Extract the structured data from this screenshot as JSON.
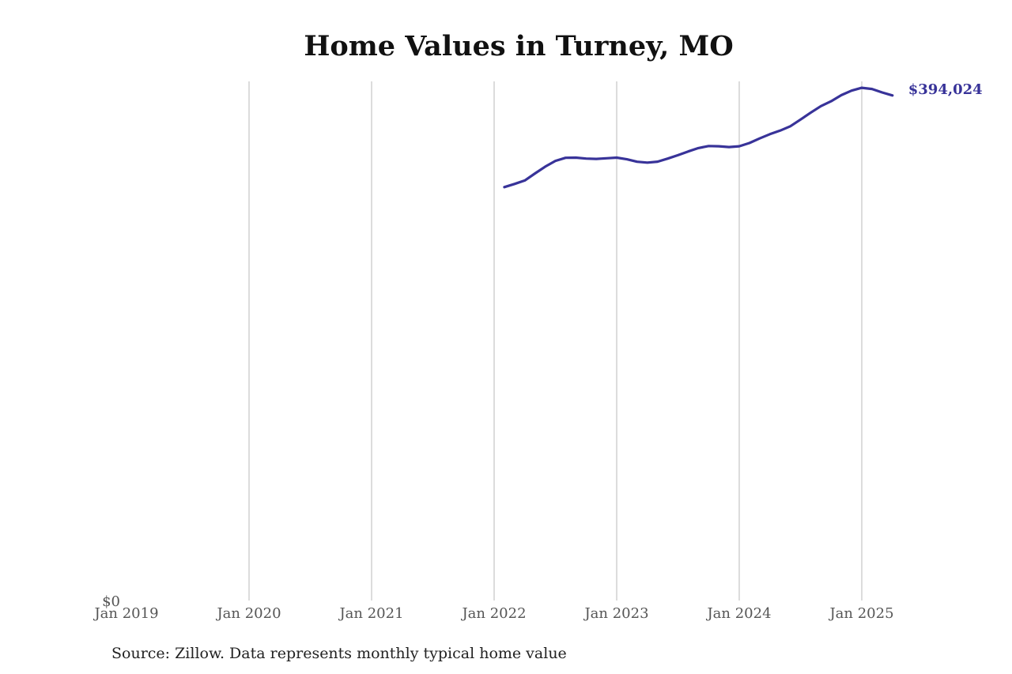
{
  "chart_data": {
    "type": "line",
    "title": "Home Values in Turney, MO",
    "xlabel": "",
    "ylabel": "",
    "x_ticks": [
      "Jan 2019",
      "Jan 2020",
      "Jan 2021",
      "Jan 2022",
      "Jan 2023",
      "Jan 2024",
      "Jan 2025"
    ],
    "y_ticks": [
      {
        "value": 0,
        "label": "$0"
      }
    ],
    "ylim": [
      0,
      405000
    ],
    "xlim": [
      "2019-01",
      "2025-06"
    ],
    "grid": "vertical",
    "line_color": "#383399",
    "end_label": "$394,024",
    "series": [
      {
        "x": [
          "2022-02",
          "2022-03",
          "2022-04",
          "2022-05",
          "2022-06",
          "2022-07",
          "2022-08",
          "2022-09",
          "2022-10",
          "2022-11",
          "2022-12",
          "2023-01",
          "2023-02",
          "2023-03",
          "2023-04",
          "2023-05",
          "2023-06",
          "2023-07",
          "2023-08",
          "2023-09",
          "2023-10",
          "2023-11",
          "2023-12",
          "2024-01",
          "2024-02",
          "2024-03",
          "2024-04",
          "2024-05",
          "2024-06",
          "2024-07",
          "2024-08",
          "2024-09",
          "2024-10",
          "2024-11",
          "2024-12",
          "2025-01",
          "2025-02",
          "2025-03",
          "2025-04"
        ],
        "values": [
          322500,
          325000,
          327700,
          333200,
          338500,
          343000,
          345400,
          345500,
          344800,
          344500,
          345000,
          345500,
          344200,
          342300,
          341600,
          342400,
          344800,
          347400,
          350300,
          353000,
          354600,
          354400,
          353800,
          354400,
          356900,
          360500,
          363800,
          366600,
          370000,
          375200,
          380600,
          385700,
          389500,
          394300,
          397800,
          400000,
          399100,
          396400,
          394024
        ]
      }
    ],
    "source": "Source: Zillow. Data represents monthly typical home value"
  }
}
